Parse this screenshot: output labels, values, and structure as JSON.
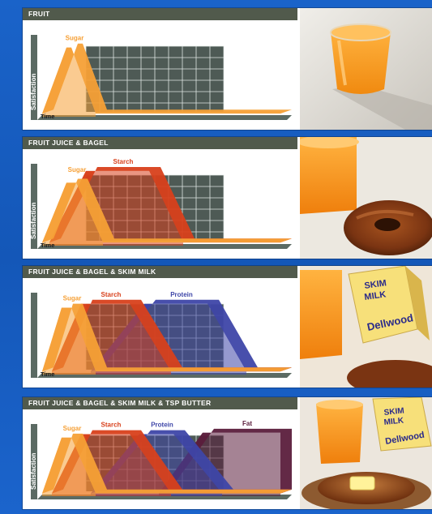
{
  "panels": [
    {
      "title": "FRUIT",
      "axis": {
        "y_label": "Satisfaction",
        "x_label": "Time"
      },
      "series": [
        {
          "name": "Sugar",
          "color": "#f6a036"
        }
      ],
      "photo": {
        "items": [
          "orange-juice"
        ]
      }
    },
    {
      "title": "FRUIT JUICE & BAGEL",
      "axis": {
        "y_label": "Satisfaction",
        "x_label": "Time"
      },
      "series": [
        {
          "name": "Sugar",
          "color": "#f6a036"
        },
        {
          "name": "Starch",
          "color": "#d8401b"
        }
      ],
      "photo": {
        "items": [
          "orange-juice",
          "bagel"
        ]
      }
    },
    {
      "title": "FRUIT JUICE & BAGEL & SKIM MILK",
      "axis": {
        "y_label": "",
        "x_label": "Time"
      },
      "series": [
        {
          "name": "Sugar",
          "color": "#f6a036"
        },
        {
          "name": "Starch",
          "color": "#d8401b"
        },
        {
          "name": "Protein",
          "color": "#3e46a8"
        }
      ],
      "photo": {
        "items": [
          "orange-juice",
          "skim-milk-carton",
          "bagel"
        ],
        "carton_text": [
          "SKIM",
          "MILK",
          "Dellwood"
        ]
      }
    },
    {
      "title": "FRUIT JUICE & BAGEL & SKIM MILK & TSP BUTTER",
      "axis": {
        "y_label": "Satisfaction",
        "x_label": ""
      },
      "series": [
        {
          "name": "Sugar",
          "color": "#f6a036"
        },
        {
          "name": "Starch",
          "color": "#d8401b"
        },
        {
          "name": "Protein",
          "color": "#3e46a8"
        },
        {
          "name": "Fat",
          "color": "#5b1d3c"
        }
      ],
      "photo": {
        "items": [
          "orange-juice",
          "skim-milk-carton",
          "bagel-with-butter"
        ],
        "carton_text": [
          "SKIM",
          "MILK",
          "Dellwood"
        ]
      }
    }
  ],
  "chart_data": [
    {
      "type": "area",
      "title": "FRUIT",
      "xlabel": "Time",
      "ylabel": "Satisfaction",
      "series": [
        {
          "name": "Sugar",
          "start": 0.02,
          "rise_end": 0.12,
          "plateau_end": 0.14,
          "fall_end": 0.24,
          "level": 0.88
        }
      ]
    },
    {
      "type": "area",
      "title": "FRUIT JUICE & BAGEL",
      "xlabel": "Time",
      "ylabel": "Satisfaction",
      "series": [
        {
          "name": "Sugar",
          "start": 0.02,
          "rise_end": 0.12,
          "plateau_end": 0.16,
          "fall_end": 0.27,
          "level": 0.8
        },
        {
          "name": "Starch",
          "start": 0.05,
          "rise_end": 0.2,
          "plateau_end": 0.46,
          "fall_end": 0.6,
          "level": 0.95
        }
      ]
    },
    {
      "type": "area",
      "title": "FRUIT JUICE & BAGEL & SKIM MILK",
      "xlabel": "Time",
      "ylabel": "",
      "series": [
        {
          "name": "Sugar",
          "start": 0.02,
          "rise_end": 0.1,
          "plateau_end": 0.14,
          "fall_end": 0.24,
          "level": 0.85
        },
        {
          "name": "Starch",
          "start": 0.06,
          "rise_end": 0.18,
          "plateau_end": 0.38,
          "fall_end": 0.55,
          "level": 0.9
        },
        {
          "name": "Protein",
          "start": 0.22,
          "rise_end": 0.44,
          "plateau_end": 0.7,
          "fall_end": 0.86,
          "level": 0.9
        }
      ]
    },
    {
      "type": "area",
      "title": "FRUIT JUICE & BAGEL & SKIM MILK & TSP BUTTER",
      "xlabel": "",
      "ylabel": "Satisfaction",
      "series": [
        {
          "name": "Sugar",
          "start": 0.02,
          "rise_end": 0.1,
          "plateau_end": 0.14,
          "fall_end": 0.24,
          "level": 0.85
        },
        {
          "name": "Starch",
          "start": 0.06,
          "rise_end": 0.18,
          "plateau_end": 0.38,
          "fall_end": 0.55,
          "level": 0.9
        },
        {
          "name": "Protein",
          "start": 0.22,
          "rise_end": 0.42,
          "plateau_end": 0.56,
          "fall_end": 0.76,
          "level": 0.9
        },
        {
          "name": "Fat",
          "start": 0.5,
          "rise_end": 0.68,
          "plateau_end": 1.0,
          "fall_end": 1.0,
          "level": 0.92
        }
      ]
    }
  ]
}
